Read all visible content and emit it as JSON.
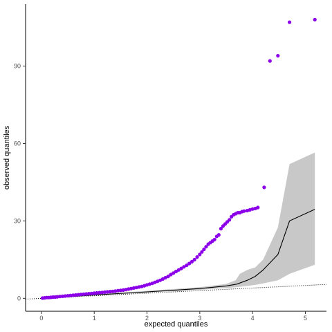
{
  "chart_data": {
    "type": "scatter",
    "title": "",
    "xlabel": "expected quantiles",
    "ylabel": "observed quantiles",
    "xlim": [
      -0.3,
      5.4
    ],
    "ylim": [
      -5,
      114
    ],
    "x_ticks": [
      0,
      1,
      2,
      3,
      4,
      5
    ],
    "y_ticks": [
      0,
      30,
      60,
      90
    ],
    "grid": false,
    "legend": "none",
    "colors": {
      "points": "#8B00E8",
      "line": "#000000",
      "band": "#C8C8C8",
      "reference": "#000000"
    },
    "points": {
      "x": [
        0.02,
        0.06,
        0.1,
        0.14,
        0.18,
        0.22,
        0.26,
        0.3,
        0.35,
        0.4,
        0.45,
        0.5,
        0.55,
        0.6,
        0.65,
        0.7,
        0.75,
        0.8,
        0.85,
        0.9,
        0.95,
        1.0,
        1.05,
        1.1,
        1.15,
        1.2,
        1.25,
        1.3,
        1.35,
        1.4,
        1.45,
        1.5,
        1.55,
        1.6,
        1.65,
        1.7,
        1.75,
        1.8,
        1.85,
        1.9,
        1.95,
        2.0,
        2.05,
        2.1,
        2.15,
        2.2,
        2.25,
        2.3,
        2.35,
        2.4,
        2.45,
        2.5,
        2.55,
        2.6,
        2.65,
        2.7,
        2.75,
        2.8,
        2.85,
        2.9,
        2.95,
        3.0,
        3.04,
        3.08,
        3.12,
        3.16,
        3.2,
        3.24,
        3.28,
        3.32,
        3.36,
        3.4,
        3.44,
        3.48,
        3.52,
        3.56,
        3.6,
        3.64,
        3.68,
        3.72,
        3.76,
        3.8,
        3.84,
        3.9,
        3.95,
        4.0,
        4.05,
        4.1,
        4.22,
        4.33,
        4.48,
        4.7,
        5.18
      ],
      "y": [
        0.1,
        0.2,
        0.3,
        0.3,
        0.4,
        0.5,
        0.5,
        0.6,
        0.7,
        0.8,
        0.9,
        1.0,
        1.1,
        1.2,
        1.3,
        1.4,
        1.5,
        1.6,
        1.7,
        1.8,
        1.9,
        2.0,
        2.1,
        2.2,
        2.3,
        2.4,
        2.5,
        2.6,
        2.7,
        2.8,
        3.0,
        3.1,
        3.2,
        3.4,
        3.6,
        3.8,
        4.0,
        4.2,
        4.4,
        4.6,
        4.9,
        5.2,
        5.5,
        5.8,
        6.2,
        6.6,
        7.0,
        7.5,
        8.0,
        8.5,
        9.2,
        9.8,
        10.4,
        11.0,
        11.6,
        12.2,
        12.8,
        13.5,
        14.2,
        15.0,
        16.0,
        17.0,
        18.0,
        19.0,
        20.0,
        21.0,
        21.6,
        22.2,
        22.8,
        24.0,
        24.6,
        27.0,
        28.0,
        28.8,
        29.6,
        30.4,
        31.6,
        32.4,
        32.8,
        33.2,
        33.2,
        33.6,
        33.8,
        34.0,
        34.3,
        34.6,
        34.8,
        35.2,
        43.0,
        92.0,
        94.0,
        107.0,
        108.0
      ]
    },
    "expected_line": {
      "x": [
        0,
        1,
        2,
        3,
        3.5,
        3.7,
        3.9,
        4.05,
        4.2,
        4.48,
        4.7,
        5.18
      ],
      "y": [
        0,
        1.3,
        2.5,
        3.8,
        4.8,
        5.5,
        7.0,
        8.5,
        11.0,
        17.0,
        30.0,
        34.5
      ]
    },
    "confidence_band": {
      "x": [
        0,
        1,
        2,
        3,
        3.5,
        3.68,
        3.76,
        3.9,
        4.05,
        4.2,
        4.48,
        4.7,
        5.18
      ],
      "upper": [
        0.2,
        1.6,
        2.9,
        4.3,
        5.6,
        7.0,
        9.5,
        11.0,
        12.0,
        15.0,
        27.5,
        52.0,
        56.5
      ],
      "lower": [
        0,
        1.1,
        2.2,
        3.3,
        4.0,
        4.3,
        4.5,
        4.8,
        5.2,
        5.8,
        7.0,
        9.5,
        13.0
      ]
    },
    "reference_line": {
      "slope": 1,
      "intercept": 0,
      "x_range": [
        -0.3,
        5.4
      ]
    }
  }
}
